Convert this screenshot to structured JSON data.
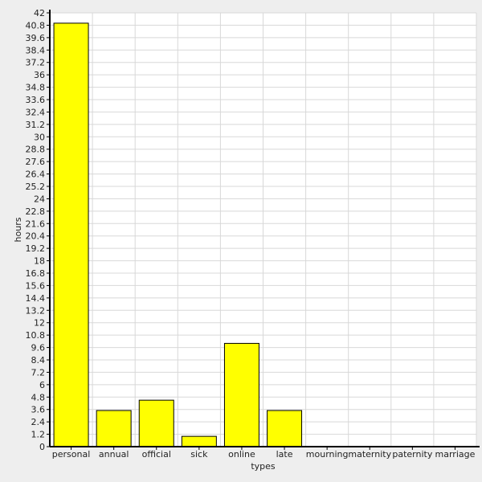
{
  "chart_data": {
    "type": "bar",
    "title": "",
    "xlabel": "types",
    "ylabel": "hours",
    "categories": [
      "personal",
      "annual",
      "official",
      "sick",
      "online",
      "late",
      "mourning",
      "maternity",
      "paternity",
      "marriage"
    ],
    "values": [
      41,
      3.5,
      4.5,
      1,
      10,
      3.5,
      0,
      0,
      0,
      0
    ],
    "ylim": [
      0,
      42
    ],
    "yticks": [
      "0",
      "1.2",
      "2.4",
      "3.6",
      "4.8",
      "6",
      "7.2",
      "8.4",
      "9.6",
      "10.8",
      "12",
      "13.2",
      "14.4",
      "15.6",
      "16.8",
      "18",
      "19.2",
      "20.4",
      "21.6",
      "22.8",
      "24",
      "25.2",
      "26.4",
      "27.6",
      "28.8",
      "30",
      "31.2",
      "32.4",
      "33.6",
      "34.8",
      "36",
      "37.2",
      "38.4",
      "39.6",
      "40.8",
      "42"
    ],
    "grid": true,
    "legend": "none",
    "colors": {
      "bar": "#ffff00",
      "bar_stroke": "#000000",
      "plot_bg": "#ffffff",
      "page_bg": "#eeeeee",
      "grid": "#d8d8d8"
    }
  }
}
